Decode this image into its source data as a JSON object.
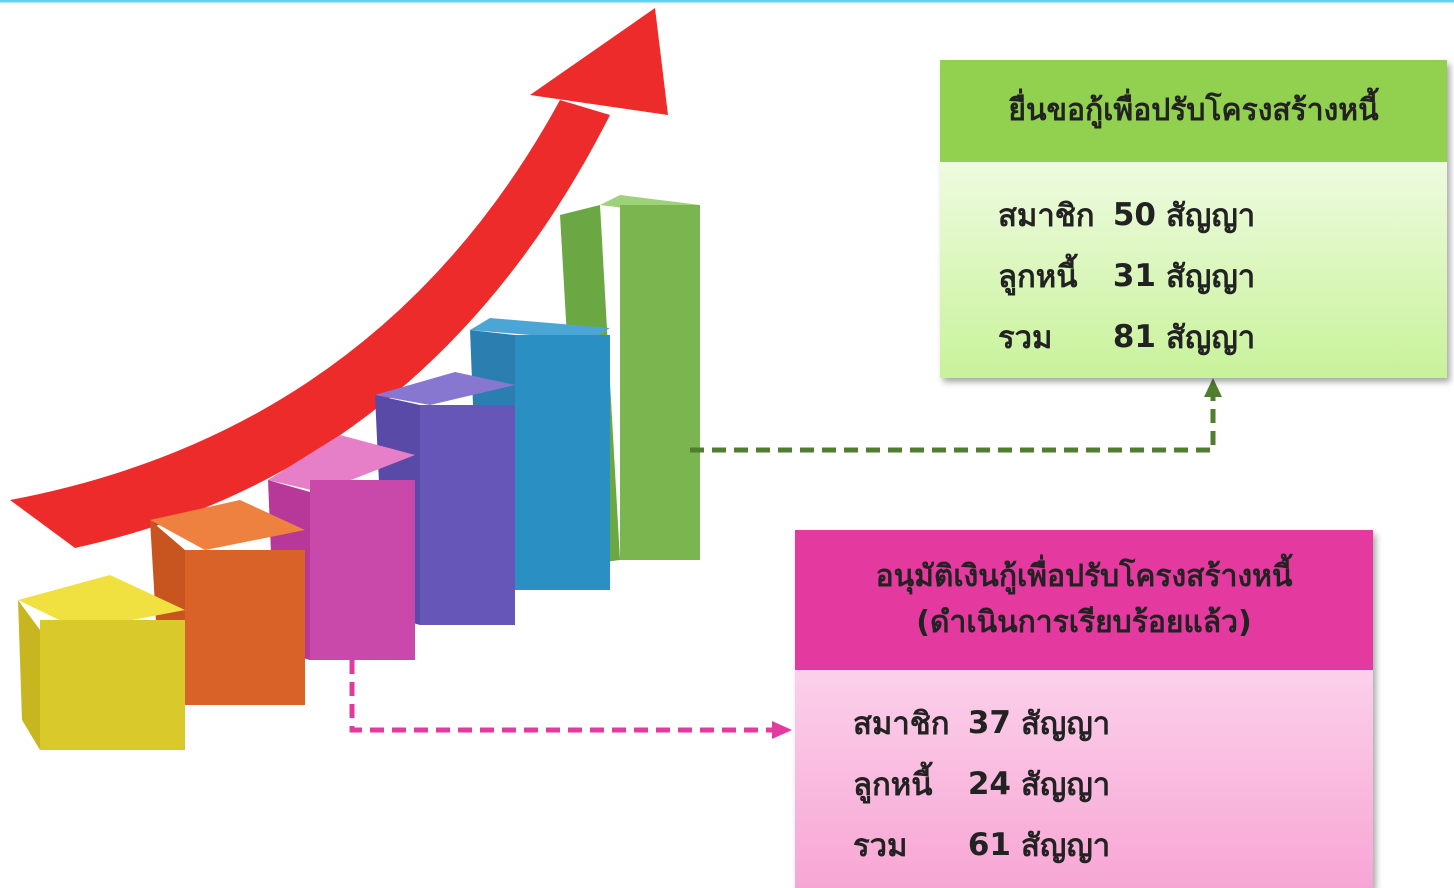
{
  "boxes": [
    {
      "title": [
        "ยื่นขอกู้เพื่อปรับโครงสร้างหนี้"
      ],
      "rows": [
        {
          "label": "สมาชิก",
          "count": 50,
          "unit": "สัญญา"
        },
        {
          "label": "ลูกหนี้",
          "count": 31,
          "unit": "สัญญา"
        },
        {
          "label": "รวม",
          "count": 81,
          "unit": "สัญญา"
        }
      ]
    },
    {
      "title": [
        "อนุมัติเงินกู้เพื่อปรับโครงสร้างหนี้",
        "(ดำเนินการเรียบร้อยแล้ว)"
      ],
      "rows": [
        {
          "label": "สมาชิก",
          "count": 37,
          "unit": "สัญญา"
        },
        {
          "label": "ลูกหนี้",
          "count": 24,
          "unit": "สัญญา"
        },
        {
          "label": "รวม",
          "count": 61,
          "unit": "สัญญา"
        }
      ]
    }
  ]
}
